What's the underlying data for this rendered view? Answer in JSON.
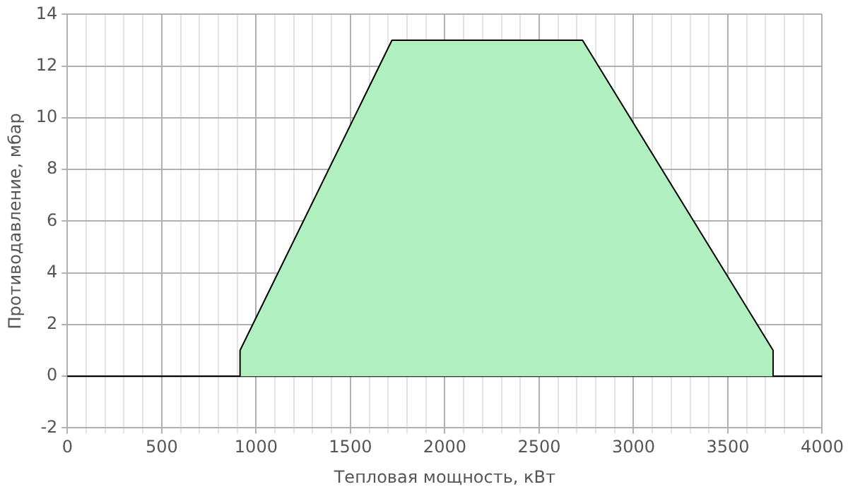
{
  "chart_data": {
    "type": "area",
    "xlabel": "Тепловая мощность, кВт",
    "ylabel": "Противодавление, мбар",
    "x": [
      915,
      915,
      1720,
      2730,
      3740,
      3740
    ],
    "series": [
      {
        "color": "#b0f0c0",
        "values": [
          0,
          1,
          13,
          13,
          1,
          0
        ]
      }
    ],
    "xlim": [
      0,
      4000
    ],
    "ylim": [
      -2,
      14
    ],
    "xticks": [
      0,
      {
        "value": 100,
        "label": null
      },
      {
        "value": 200,
        "label": null
      },
      {
        "value": 300,
        "label": null
      },
      {
        "value": 400,
        "label": null
      },
      500,
      {
        "value": 600,
        "label": null
      },
      {
        "value": 700,
        "label": null
      },
      {
        "value": 800,
        "label": null
      },
      {
        "value": 900,
        "label": null
      },
      1000,
      {
        "value": 1100,
        "label": null
      },
      {
        "value": 1200,
        "label": null
      },
      {
        "value": 1300,
        "label": null
      },
      {
        "value": 1400,
        "label": null
      },
      1500,
      {
        "value": 1600,
        "label": null
      },
      {
        "value": 1700,
        "label": null
      },
      {
        "value": 1800,
        "label": null
      },
      {
        "value": 1900,
        "label": null
      },
      2000,
      {
        "value": 2100,
        "label": null
      },
      {
        "value": 2200,
        "label": null
      },
      {
        "value": 2300,
        "label": null
      },
      {
        "value": 2400,
        "label": null
      },
      2500,
      {
        "value": 2600,
        "label": null
      },
      {
        "value": 2700,
        "label": null
      },
      {
        "value": 2800,
        "label": null
      },
      {
        "value": 2900,
        "label": null
      },
      3000,
      {
        "value": 3100,
        "label": null
      },
      {
        "value": 3200,
        "label": null
      },
      {
        "value": 3300,
        "label": null
      },
      {
        "value": 3400,
        "label": null
      },
      3500,
      {
        "value": 3600,
        "label": null
      },
      {
        "value": 3700,
        "label": null
      },
      {
        "value": 3800,
        "label": null
      },
      {
        "value": 3900,
        "label": null
      },
      4000
    ],
    "yticks": [
      -2,
      0,
      2,
      4,
      6,
      8,
      10,
      12,
      14
    ],
    "grid": true,
    "legend": false,
    "ref_lines": [
      {
        "axis": "y",
        "value": 0,
        "color": "#000000"
      }
    ]
  }
}
